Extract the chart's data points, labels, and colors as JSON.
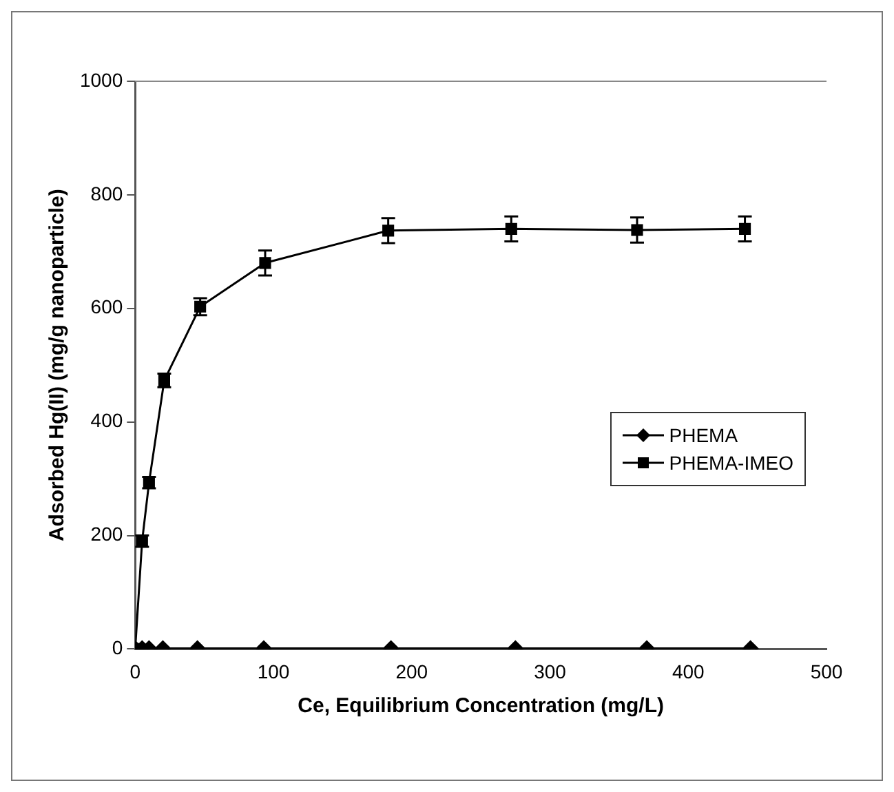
{
  "chart_data": {
    "type": "line",
    "xlabel": "Ce, Equilibrium Concentration (mg/L)",
    "ylabel": "Adsorbed Hg(II) (mg/g nanoparticle)",
    "xlim": [
      0,
      500
    ],
    "xticks": [
      0,
      100,
      200,
      300,
      400,
      500
    ],
    "ylim": [
      0,
      1000
    ],
    "yticks": [
      0,
      200,
      400,
      600,
      800,
      1000
    ],
    "legend": "right",
    "grid": false,
    "line_style": "solid",
    "series": [
      {
        "name": "PHEMA",
        "color": "#000000",
        "marker": "diamond",
        "x": [
          0,
          5,
          10,
          20,
          45,
          93,
          185,
          275,
          370,
          445
        ],
        "values": [
          1,
          1,
          1,
          1,
          1,
          1,
          1,
          1,
          1,
          1
        ]
      },
      {
        "name": "PHEMA-IMEO",
        "color": "#000000",
        "marker": "square",
        "x": [
          0,
          5,
          10,
          21,
          47,
          94,
          183,
          272,
          363,
          441
        ],
        "values": [
          0,
          190,
          293,
          473,
          603,
          680,
          737,
          740,
          738,
          740
        ],
        "errors": [
          null,
          10,
          10,
          12,
          15,
          22,
          22,
          22,
          22,
          22
        ]
      }
    ]
  }
}
